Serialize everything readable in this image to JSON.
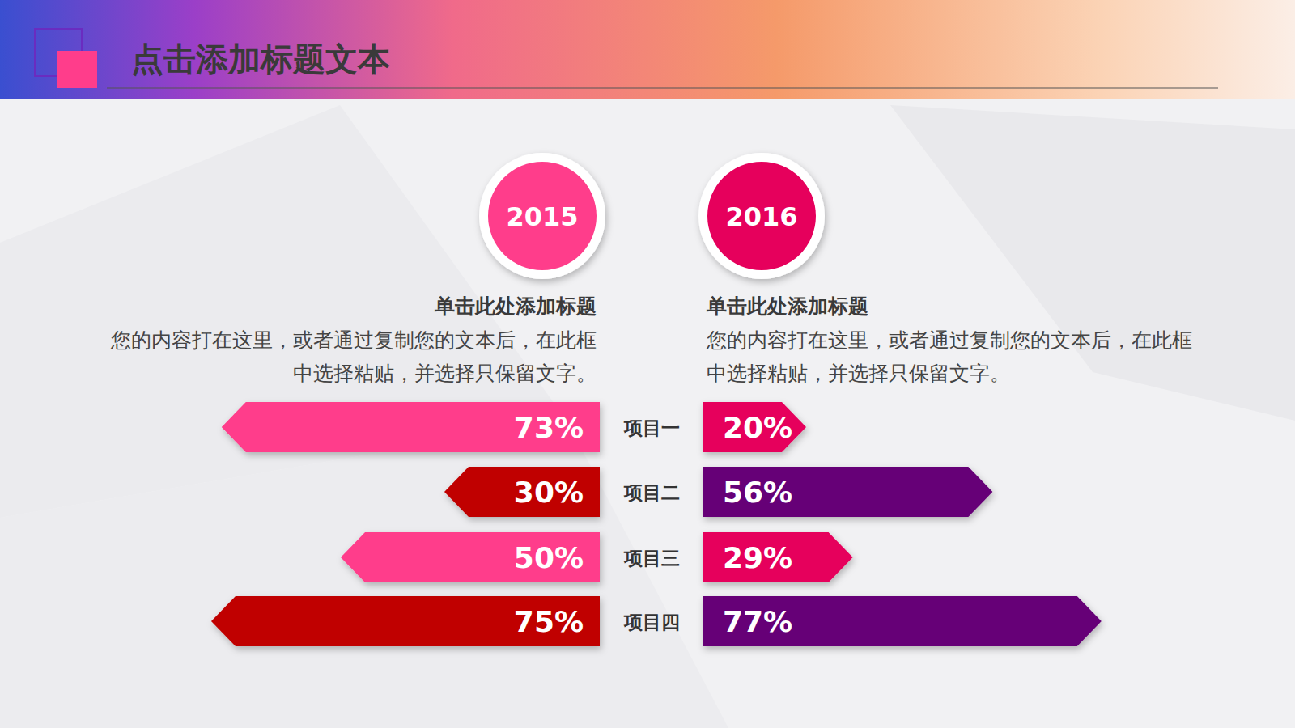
{
  "chart_data": {
    "type": "bar",
    "orientation": "horizontal",
    "title": "点击添加标题文本",
    "categories": [
      "项目一",
      "项目二",
      "项目三",
      "项目四"
    ],
    "series": [
      {
        "name": "2015",
        "values": [
          73,
          30,
          50,
          75
        ],
        "value_labels": [
          "73%",
          "30%",
          "50%",
          "75%"
        ],
        "colors": [
          "#ff3d8b",
          "#c00000",
          "#ff3d8b",
          "#c00000"
        ]
      },
      {
        "name": "2016",
        "values": [
          20,
          56,
          29,
          77
        ],
        "value_labels": [
          "20%",
          "56%",
          "29%",
          "77%"
        ],
        "colors": [
          "#e6005c",
          "#660077",
          "#e6005c",
          "#660077"
        ]
      }
    ],
    "xlim": [
      0,
      100
    ],
    "data_labels": true,
    "tick_labels": false,
    "grid": false
  },
  "panels": [
    {
      "heading": "单击此处添加标题",
      "text": "您的内容打在这里，或者通过复制您的文本后，在此框中选择粘贴，并选择只保留文字。"
    },
    {
      "heading": "单击此处添加标题",
      "text": "您的内容打在这里，或者通过复制您的文本后，在此框中选择粘贴，并选择只保留文字。"
    }
  ]
}
